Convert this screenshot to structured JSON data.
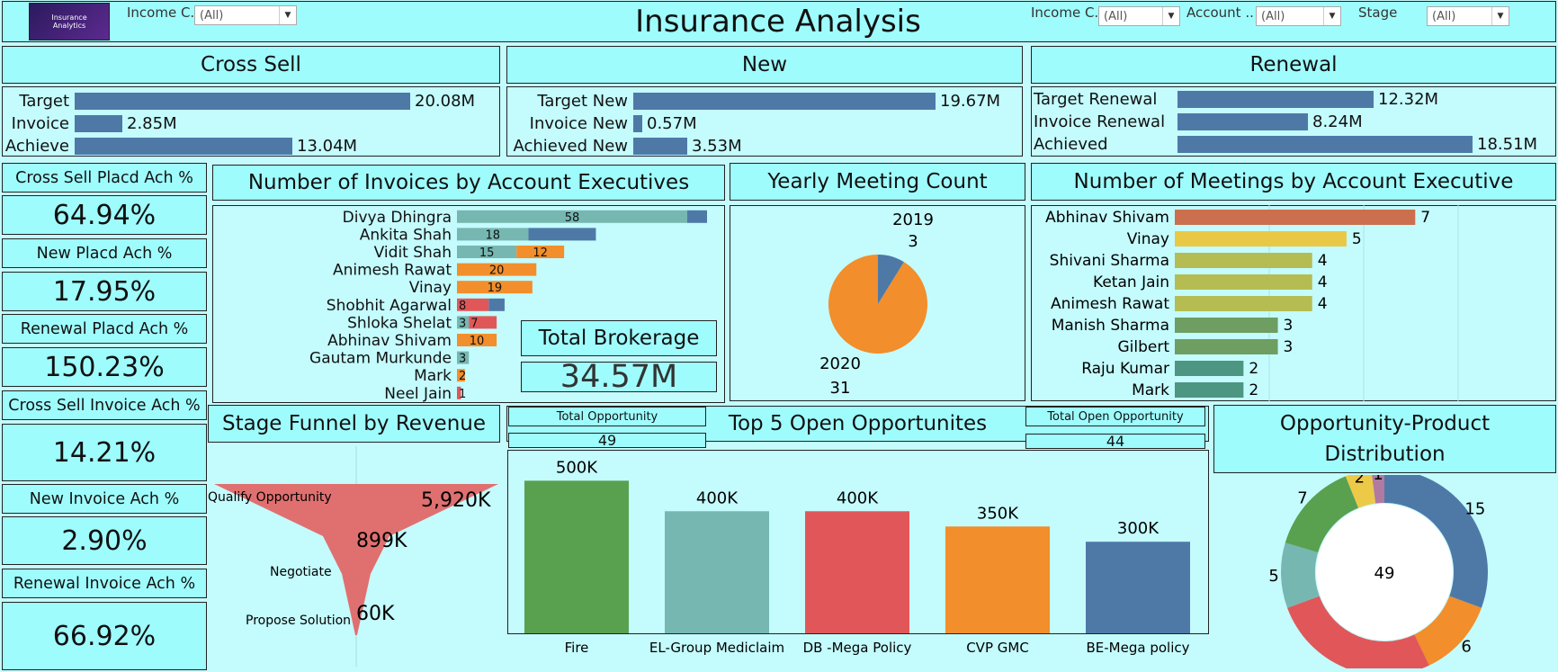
{
  "title": "Insurance Analysis",
  "logo": {
    "line1": "Insurance",
    "line2": "Analytics"
  },
  "filters_left": [
    {
      "label": "Income C..",
      "value": "(All)"
    }
  ],
  "filters_right": [
    {
      "label": "Income C..",
      "value": "(All)"
    },
    {
      "label": "Account ..",
      "value": "(All)"
    },
    {
      "label": "Stage",
      "value": "(All)"
    }
  ],
  "cross_sell": {
    "title": "Cross Sell",
    "rows": [
      {
        "label": "Target",
        "value": 20.08,
        "text": "20.08M"
      },
      {
        "label": "Invoice",
        "value": 2.85,
        "text": "2.85M"
      },
      {
        "label": "Achieve",
        "value": 13.04,
        "text": "13.04M"
      }
    ]
  },
  "new": {
    "title": "New",
    "rows": [
      {
        "label": "Target New",
        "value": 19.67,
        "text": "19.67M"
      },
      {
        "label": "Invoice New",
        "value": 0.57,
        "text": "0.57M"
      },
      {
        "label": "Achieved New",
        "value": 3.53,
        "text": "3.53M"
      }
    ]
  },
  "renewal": {
    "title": "Renewal",
    "rows": [
      {
        "label": "Target Renewal",
        "value": 12.32,
        "text": "12.32M"
      },
      {
        "label": "Invoice Renewal",
        "value": 8.24,
        "text": "8.24M"
      },
      {
        "label": "Achieved",
        "value": 18.51,
        "text": "18.51M"
      }
    ]
  },
  "kpis": [
    {
      "label": "Cross Sell Placd Ach %",
      "value": "64.94%"
    },
    {
      "label": "New Placd Ach %",
      "value": "17.95%"
    },
    {
      "label": "Renewal Placd Ach %",
      "value": "150.23%"
    },
    {
      "label": "Cross Sell Invoice Ach %",
      "value": "14.21%"
    },
    {
      "label": "New Invoice Ach %",
      "value": "2.90%"
    },
    {
      "label": "Renewal Invoice Ach %",
      "value": "66.92%"
    }
  ],
  "invoices_title": "Number of Invoices by Account Executives",
  "total_brokerage": {
    "label": "Total Brokerage",
    "value": "34.57M"
  },
  "meeting_title": "Yearly Meeting Count",
  "meetings_ae_title": "Number of Meetings by Account Executive",
  "funnel_title": "Stage Funnel by Revenue",
  "top5_title": "Top 5 Open Opportunites",
  "total_opportunity": {
    "label": "Total Opportunity",
    "value": "49"
  },
  "total_open_opportunity": {
    "label": "Total Open Opportunity",
    "value": "44"
  },
  "donut_title_1": "Opportunity-Product",
  "donut_title_2": "Distribution",
  "chart_data": [
    {
      "type": "bar",
      "title": "Number of Invoices by Account Executives",
      "orientation": "horizontal-stacked",
      "categories": [
        "Divya Dhingra",
        "Ankita Shah",
        "Vidit Shah",
        "Animesh Rawat",
        "Vinay",
        "Shobhit Agarwal",
        "Shloka Shelat",
        "Abhinav Shivam",
        "Gautam Murkunde",
        "Mark",
        "Neel Jain"
      ],
      "series": [
        {
          "values": [
            58,
            18,
            15,
            0,
            0,
            0,
            3,
            0,
            3,
            0,
            0
          ],
          "color": "#76b7b2"
        },
        {
          "values": [
            0,
            0,
            12,
            20,
            19,
            0,
            0,
            10,
            0,
            2,
            0
          ],
          "color": "#f28e2b"
        },
        {
          "values": [
            0,
            0,
            0,
            0,
            0,
            8,
            7,
            0,
            0,
            0,
            1
          ],
          "color": "#e15759"
        },
        {
          "values": [
            5,
            17,
            0,
            0,
            0,
            4,
            0,
            0,
            0,
            0,
            0
          ],
          "color": "#4e79a7"
        }
      ],
      "data_labels": [
        [
          "58"
        ],
        [
          "18"
        ],
        [
          "15",
          "12"
        ],
        [
          "20"
        ],
        [
          "19"
        ],
        [
          "8"
        ],
        [
          "3",
          "7"
        ],
        [
          "10"
        ],
        [
          "3"
        ],
        [
          "2"
        ],
        [
          "1"
        ]
      ],
      "xlim": [
        0,
        63
      ]
    },
    {
      "type": "pie",
      "title": "Yearly Meeting Count",
      "slices": [
        {
          "label": "2019",
          "value": 3,
          "color": "#4e79a7"
        },
        {
          "label": "2020",
          "value": 31,
          "color": "#f28e2b"
        }
      ]
    },
    {
      "type": "bar",
      "title": "Number of Meetings by Account Executive",
      "orientation": "horizontal",
      "categories": [
        "Abhinav Shivam",
        "Vinay",
        "Shivani Sharma",
        "Ketan Jain",
        "Animesh Rawat",
        "Manish Sharma",
        "Gilbert",
        "Raju Kumar",
        "Mark"
      ],
      "values": [
        7,
        5,
        4,
        4,
        4,
        3,
        3,
        2,
        2
      ],
      "colors": [
        "#cc6f4f",
        "#e9c846",
        "#b5bd52",
        "#b5bd52",
        "#b5bd52",
        "#6e9e61",
        "#6e9e61",
        "#4d9682",
        "#4d9682"
      ],
      "xlim": [
        0,
        11
      ]
    },
    {
      "type": "bar",
      "title": "Stage Funnel by Revenue",
      "orientation": "funnel",
      "categories": [
        "Qualify Opportunity",
        "Negotiate",
        "Propose Solution"
      ],
      "values": [
        5920,
        899,
        60
      ],
      "labels": [
        "5,920K",
        "899K",
        "60K"
      ],
      "color": "#e07070"
    },
    {
      "type": "bar",
      "title": "Top 5 Open Opportunites",
      "categories": [
        "Fire",
        "EL-Group Mediclaim",
        "DB -Mega Policy",
        "CVP GMC",
        "BE-Mega policy"
      ],
      "values": [
        500,
        400,
        400,
        350,
        300
      ],
      "labels": [
        "500K",
        "400K",
        "400K",
        "350K",
        "300K"
      ],
      "colors": [
        "#59a14f",
        "#76b7b2",
        "#e15759",
        "#f28e2b",
        "#4e79a7"
      ],
      "ylim": [
        0,
        560
      ]
    },
    {
      "type": "pie",
      "title": "Opportunity-Product Distribution",
      "donut": true,
      "center_label": "49",
      "slices": [
        {
          "value": 15,
          "color": "#4e79a7"
        },
        {
          "value": 6,
          "color": "#f28e2b"
        },
        {
          "value": 13,
          "color": "#e15759"
        },
        {
          "value": 5,
          "color": "#76b7b2"
        },
        {
          "value": 7,
          "color": "#59a14f"
        },
        {
          "value": 2,
          "color": "#edc948"
        },
        {
          "value": 1,
          "color": "#b07aa1"
        }
      ]
    }
  ]
}
